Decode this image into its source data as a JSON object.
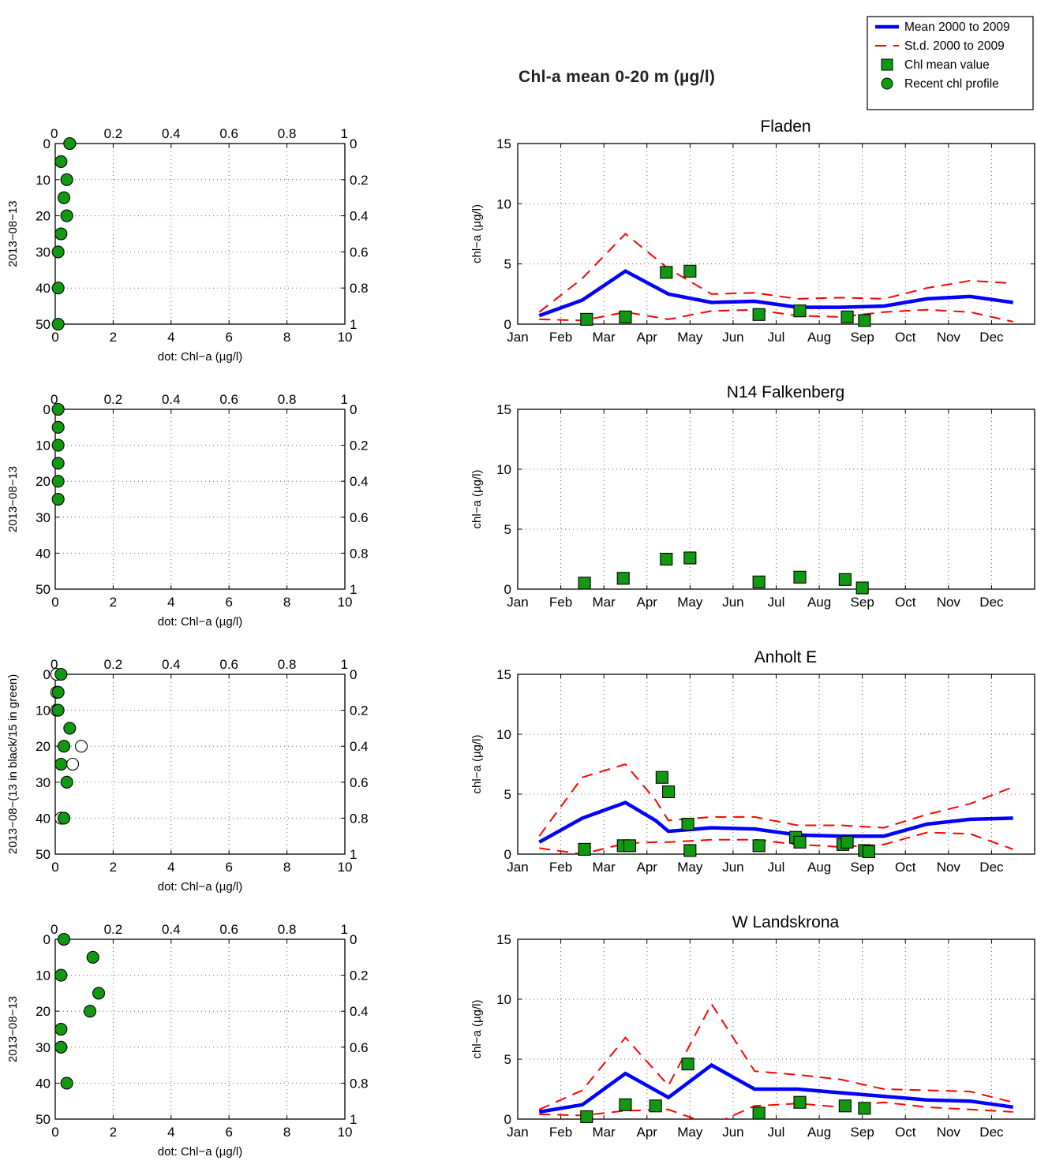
{
  "page": {
    "title": "Chl-a mean 0-20 m (µg/l)"
  },
  "legend": {
    "placement": "top-right",
    "items": [
      {
        "label": "Mean 2000 to 2009",
        "kind": "mean-line",
        "color": "#0000ff"
      },
      {
        "label": "St.d. 2000 to 2009",
        "kind": "std-dashed-line",
        "color": "#ff0000"
      },
      {
        "label": "Chl mean value",
        "kind": "square-marker",
        "color": "#119911"
      },
      {
        "label": "Recent chl profile",
        "kind": "circle-marker",
        "color": "#119911"
      }
    ]
  },
  "colors": {
    "mean": "#0000ff",
    "std": "#ff0000",
    "marker_fill": "#119911",
    "marker_edge": "#000000",
    "older_profile_fill": "#ffffff"
  },
  "chart_data": [
    {
      "type": "scatter",
      "panel": "profile-1",
      "ylabel": "2013−08−13",
      "xlabel": "dot: Chl−a (µg/l)",
      "xlim": [
        0,
        10
      ],
      "ylim": [
        0,
        50
      ],
      "y_reversed": true,
      "x_ticks": [
        "0",
        "2",
        "4",
        "6",
        "8",
        "10"
      ],
      "y_ticks": [
        "0",
        "10",
        "20",
        "30",
        "40",
        "50"
      ],
      "top_ticks": [
        "0",
        "0.2",
        "0.4",
        "0.6",
        "0.8",
        "1"
      ],
      "right_ticks": [
        "0",
        "0.2",
        "0.4",
        "0.6",
        "0.8",
        "1"
      ],
      "grid": true,
      "series": [
        {
          "fill": "#119911",
          "points": [
            [
              0.5,
              0
            ],
            [
              0.2,
              5
            ],
            [
              0.4,
              10
            ],
            [
              0.3,
              15
            ],
            [
              0.4,
              20
            ],
            [
              0.2,
              25
            ],
            [
              0.1,
              30
            ],
            [
              0.1,
              40
            ],
            [
              0.1,
              50
            ]
          ]
        }
      ]
    },
    {
      "type": "line",
      "panel": "fladen",
      "title": "Fladen",
      "ylabel": "chl−a (µg/l)",
      "xlim": [
        0,
        12
      ],
      "ylim": [
        0,
        15
      ],
      "x_ticks": [
        "Jan",
        "Feb",
        "Mar",
        "Apr",
        "May",
        "Jun",
        "Jul",
        "Aug",
        "Sep",
        "Oct",
        "Nov",
        "Dec"
      ],
      "y_ticks": [
        "0",
        "5",
        "10",
        "15"
      ],
      "grid": true,
      "mean": [
        [
          0.5,
          0.7
        ],
        [
          1.5,
          2.0
        ],
        [
          2.5,
          4.4
        ],
        [
          3.5,
          2.5
        ],
        [
          4.5,
          1.8
        ],
        [
          5.5,
          1.9
        ],
        [
          6.5,
          1.4
        ],
        [
          7.5,
          1.4
        ],
        [
          8.5,
          1.5
        ],
        [
          9.5,
          2.1
        ],
        [
          10.5,
          2.3
        ],
        [
          11.5,
          1.8
        ]
      ],
      "std_upper": [
        [
          0.5,
          1.0
        ],
        [
          1.5,
          3.8
        ],
        [
          2.5,
          7.5
        ],
        [
          3.5,
          4.6
        ],
        [
          4.5,
          2.5
        ],
        [
          5.5,
          2.6
        ],
        [
          6.5,
          2.1
        ],
        [
          7.5,
          2.2
        ],
        [
          8.5,
          2.1
        ],
        [
          9.5,
          3.0
        ],
        [
          10.5,
          3.6
        ],
        [
          11.5,
          3.4
        ]
      ],
      "std_lower": [
        [
          0.5,
          0.4
        ],
        [
          1.5,
          0.3
        ],
        [
          2.5,
          1.0
        ],
        [
          3.5,
          0.4
        ],
        [
          4.5,
          1.1
        ],
        [
          5.5,
          1.2
        ],
        [
          6.5,
          0.7
        ],
        [
          7.5,
          0.6
        ],
        [
          8.5,
          1.0
        ],
        [
          9.5,
          1.2
        ],
        [
          10.5,
          1.0
        ],
        [
          11.5,
          0.2
        ]
      ],
      "chl_mean_values": [
        [
          1.6,
          0.4
        ],
        [
          2.5,
          0.6
        ],
        [
          3.45,
          4.3
        ],
        [
          4.0,
          4.4
        ],
        [
          5.6,
          0.8
        ],
        [
          6.55,
          1.1
        ],
        [
          7.65,
          0.6
        ],
        [
          8.05,
          0.3
        ]
      ]
    },
    {
      "type": "scatter",
      "panel": "profile-2",
      "ylabel": "2013−08−13",
      "xlabel": "dot: Chl−a (µg/l)",
      "xlim": [
        0,
        10
      ],
      "ylim": [
        0,
        50
      ],
      "y_reversed": true,
      "x_ticks": [
        "0",
        "2",
        "4",
        "6",
        "8",
        "10"
      ],
      "y_ticks": [
        "0",
        "10",
        "20",
        "30",
        "40",
        "50"
      ],
      "top_ticks": [
        "0",
        "0.2",
        "0.4",
        "0.6",
        "0.8",
        "1"
      ],
      "right_ticks": [
        "0",
        "0.2",
        "0.4",
        "0.6",
        "0.8",
        "1"
      ],
      "grid": true,
      "series": [
        {
          "fill": "#119911",
          "points": [
            [
              0.1,
              0
            ],
            [
              0.1,
              5
            ],
            [
              0.1,
              10
            ],
            [
              0.1,
              15
            ],
            [
              0.1,
              20
            ],
            [
              0.1,
              25
            ]
          ]
        }
      ]
    },
    {
      "type": "scatter",
      "panel": "n14-falkenberg",
      "title": "N14 Falkenberg",
      "ylabel": "chl−a (µg/l)",
      "xlim": [
        0,
        12
      ],
      "ylim": [
        0,
        15
      ],
      "x_ticks": [
        "Jan",
        "Feb",
        "Mar",
        "Apr",
        "May",
        "Jun",
        "Jul",
        "Aug",
        "Sep",
        "Oct",
        "Nov",
        "Dec"
      ],
      "y_ticks": [
        "0",
        "5",
        "10",
        "15"
      ],
      "grid": true,
      "chl_mean_values": [
        [
          1.55,
          0.5
        ],
        [
          2.45,
          0.9
        ],
        [
          3.45,
          2.5
        ],
        [
          4.0,
          2.6
        ],
        [
          5.6,
          0.6
        ],
        [
          6.55,
          1.0
        ],
        [
          7.6,
          0.8
        ],
        [
          8.0,
          0.1
        ]
      ]
    },
    {
      "type": "scatter",
      "panel": "profile-3",
      "ylabel": "2013−08−(13 in black/15 in green)",
      "xlabel": "dot: Chl−a (µg/l)",
      "xlim": [
        0,
        10
      ],
      "ylim": [
        0,
        50
      ],
      "y_reversed": true,
      "x_ticks": [
        "0",
        "2",
        "4",
        "6",
        "8",
        "10"
      ],
      "y_ticks": [
        "0",
        "10",
        "20",
        "30",
        "40",
        "50"
      ],
      "top_ticks": [
        "0",
        "0.2",
        "0.4",
        "0.6",
        "0.8",
        "1"
      ],
      "right_ticks": [
        "0",
        "0.2",
        "0.4",
        "0.6",
        "0.8",
        "1"
      ],
      "grid": true,
      "series": [
        {
          "fill": "#ffffff",
          "points": [
            [
              0.05,
              0
            ],
            [
              0.05,
              5
            ],
            [
              0.05,
              10
            ],
            [
              0.9,
              20
            ],
            [
              0.6,
              25
            ],
            [
              0.2,
              40
            ]
          ]
        },
        {
          "fill": "#119911",
          "points": [
            [
              0.2,
              0
            ],
            [
              0.1,
              5
            ],
            [
              0.1,
              10
            ],
            [
              0.5,
              15
            ],
            [
              0.3,
              20
            ],
            [
              0.2,
              25
            ],
            [
              0.4,
              30
            ],
            [
              0.3,
              40
            ]
          ]
        }
      ]
    },
    {
      "type": "line",
      "panel": "anholt-e",
      "title": "Anholt E",
      "ylabel": "chl−a (µg/l)",
      "xlim": [
        0,
        12
      ],
      "ylim": [
        0,
        15
      ],
      "x_ticks": [
        "Jan",
        "Feb",
        "Mar",
        "Apr",
        "May",
        "Jun",
        "Jul",
        "Aug",
        "Sep",
        "Oct",
        "Nov",
        "Dec"
      ],
      "y_ticks": [
        "0",
        "5",
        "10",
        "15"
      ],
      "grid": true,
      "mean": [
        [
          0.5,
          1.0
        ],
        [
          1.5,
          3.0
        ],
        [
          2.5,
          4.3
        ],
        [
          3.2,
          2.8
        ],
        [
          3.5,
          1.9
        ],
        [
          4.5,
          2.2
        ],
        [
          5.5,
          2.1
        ],
        [
          6.5,
          1.6
        ],
        [
          7.5,
          1.5
        ],
        [
          8.5,
          1.5
        ],
        [
          9.5,
          2.5
        ],
        [
          10.5,
          2.9
        ],
        [
          11.5,
          3.0
        ]
      ],
      "std_upper": [
        [
          0.5,
          1.5
        ],
        [
          1.5,
          6.4
        ],
        [
          2.5,
          7.5
        ],
        [
          3.2,
          4.5
        ],
        [
          3.5,
          2.8
        ],
        [
          4.5,
          3.1
        ],
        [
          5.5,
          3.1
        ],
        [
          6.5,
          2.4
        ],
        [
          7.5,
          2.4
        ],
        [
          8.5,
          2.2
        ],
        [
          9.5,
          3.3
        ],
        [
          10.5,
          4.2
        ],
        [
          11.5,
          5.6
        ]
      ],
      "std_lower": [
        [
          0.5,
          0.5
        ],
        [
          1.5,
          0.0
        ],
        [
          2.5,
          0.9
        ],
        [
          3.2,
          1.0
        ],
        [
          3.5,
          1.0
        ],
        [
          4.5,
          1.2
        ],
        [
          5.5,
          1.2
        ],
        [
          6.5,
          0.8
        ],
        [
          7.5,
          0.6
        ],
        [
          8.5,
          0.8
        ],
        [
          9.5,
          1.8
        ],
        [
          10.5,
          1.7
        ],
        [
          11.5,
          0.4
        ]
      ],
      "chl_mean_values": [
        [
          1.55,
          0.4
        ],
        [
          2.45,
          0.7
        ],
        [
          2.6,
          0.7
        ],
        [
          3.35,
          6.4
        ],
        [
          3.5,
          5.2
        ],
        [
          3.95,
          2.5
        ],
        [
          4.0,
          0.3
        ],
        [
          5.6,
          0.7
        ],
        [
          6.45,
          1.4
        ],
        [
          6.55,
          1.0
        ],
        [
          7.55,
          0.8
        ],
        [
          7.65,
          1.0
        ],
        [
          8.05,
          0.3
        ],
        [
          8.15,
          0.2
        ]
      ]
    },
    {
      "type": "scatter",
      "panel": "profile-4",
      "ylabel": "2013−08−13",
      "xlabel": "dot: Chl−a (µg/l)",
      "xlim": [
        0,
        10
      ],
      "ylim": [
        0,
        50
      ],
      "y_reversed": true,
      "x_ticks": [
        "0",
        "2",
        "4",
        "6",
        "8",
        "10"
      ],
      "y_ticks": [
        "0",
        "10",
        "20",
        "30",
        "40",
        "50"
      ],
      "top_ticks": [
        "0",
        "0.2",
        "0.4",
        "0.6",
        "0.8",
        "1"
      ],
      "right_ticks": [
        "0",
        "0.2",
        "0.4",
        "0.6",
        "0.8",
        "1"
      ],
      "grid": true,
      "series": [
        {
          "fill": "#119911",
          "points": [
            [
              0.3,
              0
            ],
            [
              1.3,
              5
            ],
            [
              0.2,
              10
            ],
            [
              1.5,
              15
            ],
            [
              1.2,
              20
            ],
            [
              0.2,
              25
            ],
            [
              0.2,
              30
            ],
            [
              0.4,
              40
            ]
          ]
        }
      ]
    },
    {
      "type": "line",
      "panel": "w-landskrona",
      "title": "W Landskrona",
      "ylabel": "chl−a (µg/l)",
      "xlim": [
        0,
        12
      ],
      "ylim": [
        0,
        15
      ],
      "x_ticks": [
        "Jan",
        "Feb",
        "Mar",
        "Apr",
        "May",
        "Jun",
        "Jul",
        "Aug",
        "Sep",
        "Oct",
        "Nov",
        "Dec"
      ],
      "y_ticks": [
        "0",
        "5",
        "10",
        "15"
      ],
      "grid": true,
      "mean": [
        [
          0.5,
          0.6
        ],
        [
          1.5,
          1.2
        ],
        [
          2.5,
          3.8
        ],
        [
          3.5,
          1.8
        ],
        [
          4.5,
          4.5
        ],
        [
          5.5,
          2.5
        ],
        [
          6.5,
          2.5
        ],
        [
          7.5,
          2.2
        ],
        [
          8.5,
          1.9
        ],
        [
          9.5,
          1.6
        ],
        [
          10.5,
          1.5
        ],
        [
          11.5,
          1.0
        ]
      ],
      "std_upper": [
        [
          0.5,
          0.8
        ],
        [
          1.5,
          2.4
        ],
        [
          2.5,
          6.8
        ],
        [
          3.5,
          2.8
        ],
        [
          4.5,
          9.6
        ],
        [
          5.5,
          4.0
        ],
        [
          6.5,
          3.7
        ],
        [
          7.5,
          3.3
        ],
        [
          8.5,
          2.5
        ],
        [
          9.5,
          2.4
        ],
        [
          10.5,
          2.3
        ],
        [
          11.5,
          1.4
        ]
      ],
      "std_lower": [
        [
          0.5,
          0.4
        ],
        [
          1.5,
          0.3
        ],
        [
          2.5,
          0.7
        ],
        [
          3.5,
          0.8
        ],
        [
          4.5,
          -0.5
        ],
        [
          5.5,
          1.1
        ],
        [
          6.5,
          1.3
        ],
        [
          7.5,
          1.0
        ],
        [
          8.5,
          1.4
        ],
        [
          9.5,
          1.0
        ],
        [
          10.5,
          0.8
        ],
        [
          11.5,
          0.6
        ]
      ],
      "chl_mean_values": [
        [
          1.6,
          0.2
        ],
        [
          2.5,
          1.2
        ],
        [
          3.2,
          1.1
        ],
        [
          3.95,
          4.6
        ],
        [
          5.6,
          0.5
        ],
        [
          6.55,
          1.4
        ],
        [
          7.6,
          1.1
        ],
        [
          8.05,
          0.9
        ]
      ]
    }
  ]
}
